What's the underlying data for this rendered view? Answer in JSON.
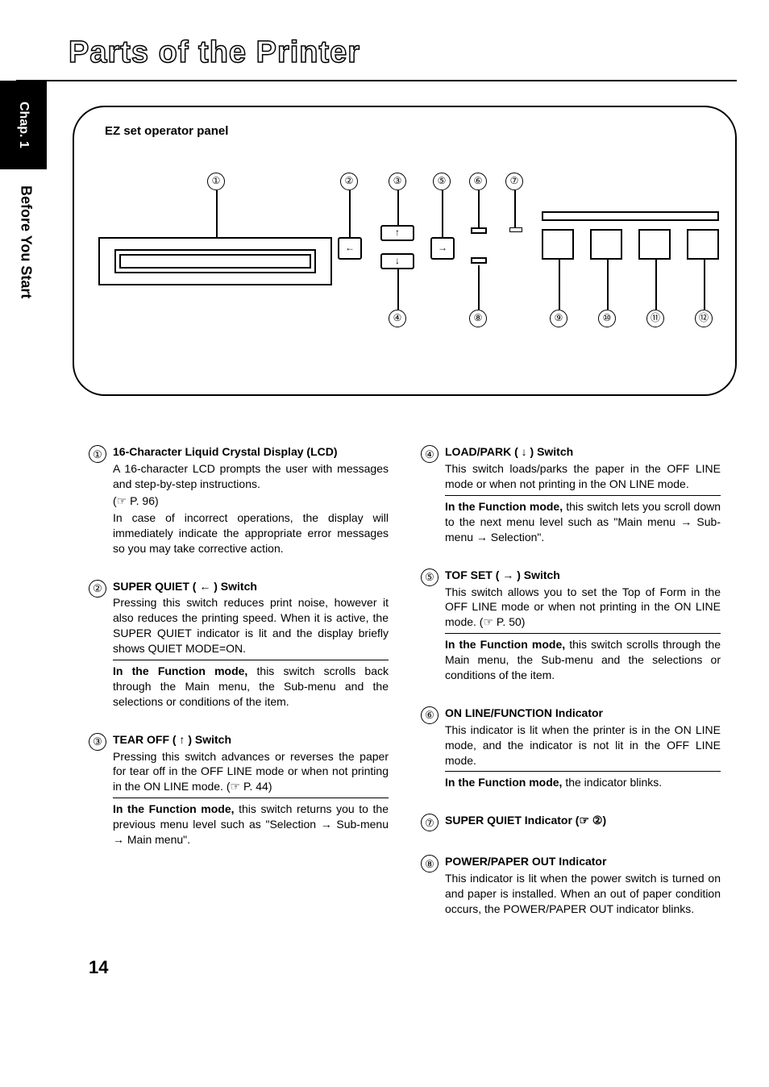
{
  "page_title": "Parts of the Printer",
  "chapter_tab": "Chap. 1",
  "side_label": "Before You Start",
  "panel_title": "EZ set operator panel",
  "page_number": "14",
  "callouts_top": [
    "①",
    "②",
    "③",
    "⑤",
    "⑥",
    "⑦"
  ],
  "callouts_bottom": [
    "④",
    "⑧",
    "⑨",
    "⑩",
    "⑪",
    "⑫"
  ],
  "left_items": [
    {
      "num": "①",
      "title": "16-Character Liquid Crystal Display (LCD)",
      "body1": "A 16-character LCD prompts the user with messages and step-by-step instructions.",
      "body2": "In case of incorrect operations, the display will immediately indicate the appropriate error messages so you may take corrective action.",
      "ref": "(☞ P. 96)"
    },
    {
      "num": "②",
      "title": "SUPER QUIET ( ← ) Switch",
      "body1": "Pressing this switch reduces print noise, however it also reduces the printing speed. When it is active, the SUPER QUIET indicator is lit and the display briefly shows QUIET MODE=ON.",
      "rule": true,
      "body2": "In the Function mode, this switch scrolls back through the Main menu, the Sub-menu and the selections or conditions of the item.",
      "body2_bold_prefix": "In the Function mode,"
    },
    {
      "num": "③",
      "title": "TEAR OFF ( ↑ ) Switch",
      "body1": "Pressing this switch advances or reverses the paper for tear off in the OFF LINE mode or when not printing in the ON LINE mode. (☞ P. 44)",
      "rule": true,
      "body2": "In the Function mode, this switch returns you to the previous menu level such as \"Selection → Sub-menu → Main menu\".",
      "body2_bold_prefix": "In the Function mode,"
    }
  ],
  "right_items": [
    {
      "num": "④",
      "title": "LOAD/PARK ( ↓ ) Switch",
      "body1": "This switch loads/parks the paper in the OFF LINE mode or when not printing in the ON LINE mode.",
      "rule": true,
      "body2": "In the Function mode, this switch lets you scroll down to the next menu level such as \"Main menu → Sub-menu → Selection\".",
      "body2_bold_prefix": "In the Function mode,"
    },
    {
      "num": "⑤",
      "title": "TOF SET ( → ) Switch",
      "body1": "This switch allows you to set the Top of Form in the OFF LINE mode or when not printing in the ON LINE mode. (☞ P. 50)",
      "rule": true,
      "body2": "In the Function mode, this switch scrolls through the Main menu, the Sub-menu and the selections or conditions of the item.",
      "body2_bold_prefix": "In the Function mode,"
    },
    {
      "num": "⑥",
      "title": "ON LINE/FUNCTION Indicator",
      "body1": "This indicator is lit when the printer is in the ON LINE mode, and the indicator is not lit in the OFF LINE mode.",
      "rule": true,
      "body2": "In the Function mode, the indicator blinks.",
      "body2_bold_prefix": "In the Function mode,"
    },
    {
      "num": "⑦",
      "title": "SUPER QUIET Indicator (☞ ②)",
      "body1": "",
      "rule": false
    },
    {
      "num": "⑧",
      "title": "POWER/PAPER OUT Indicator",
      "body1": "This indicator is lit when the power switch is turned on and paper is installed. When an out of paper condition occurs, the POWER/PAPER OUT indicator blinks.",
      "rule": false
    }
  ],
  "colors": {
    "text": "#000000",
    "bg": "#ffffff"
  },
  "fonts": {
    "body_pt": 14,
    "title_pt": 38
  }
}
